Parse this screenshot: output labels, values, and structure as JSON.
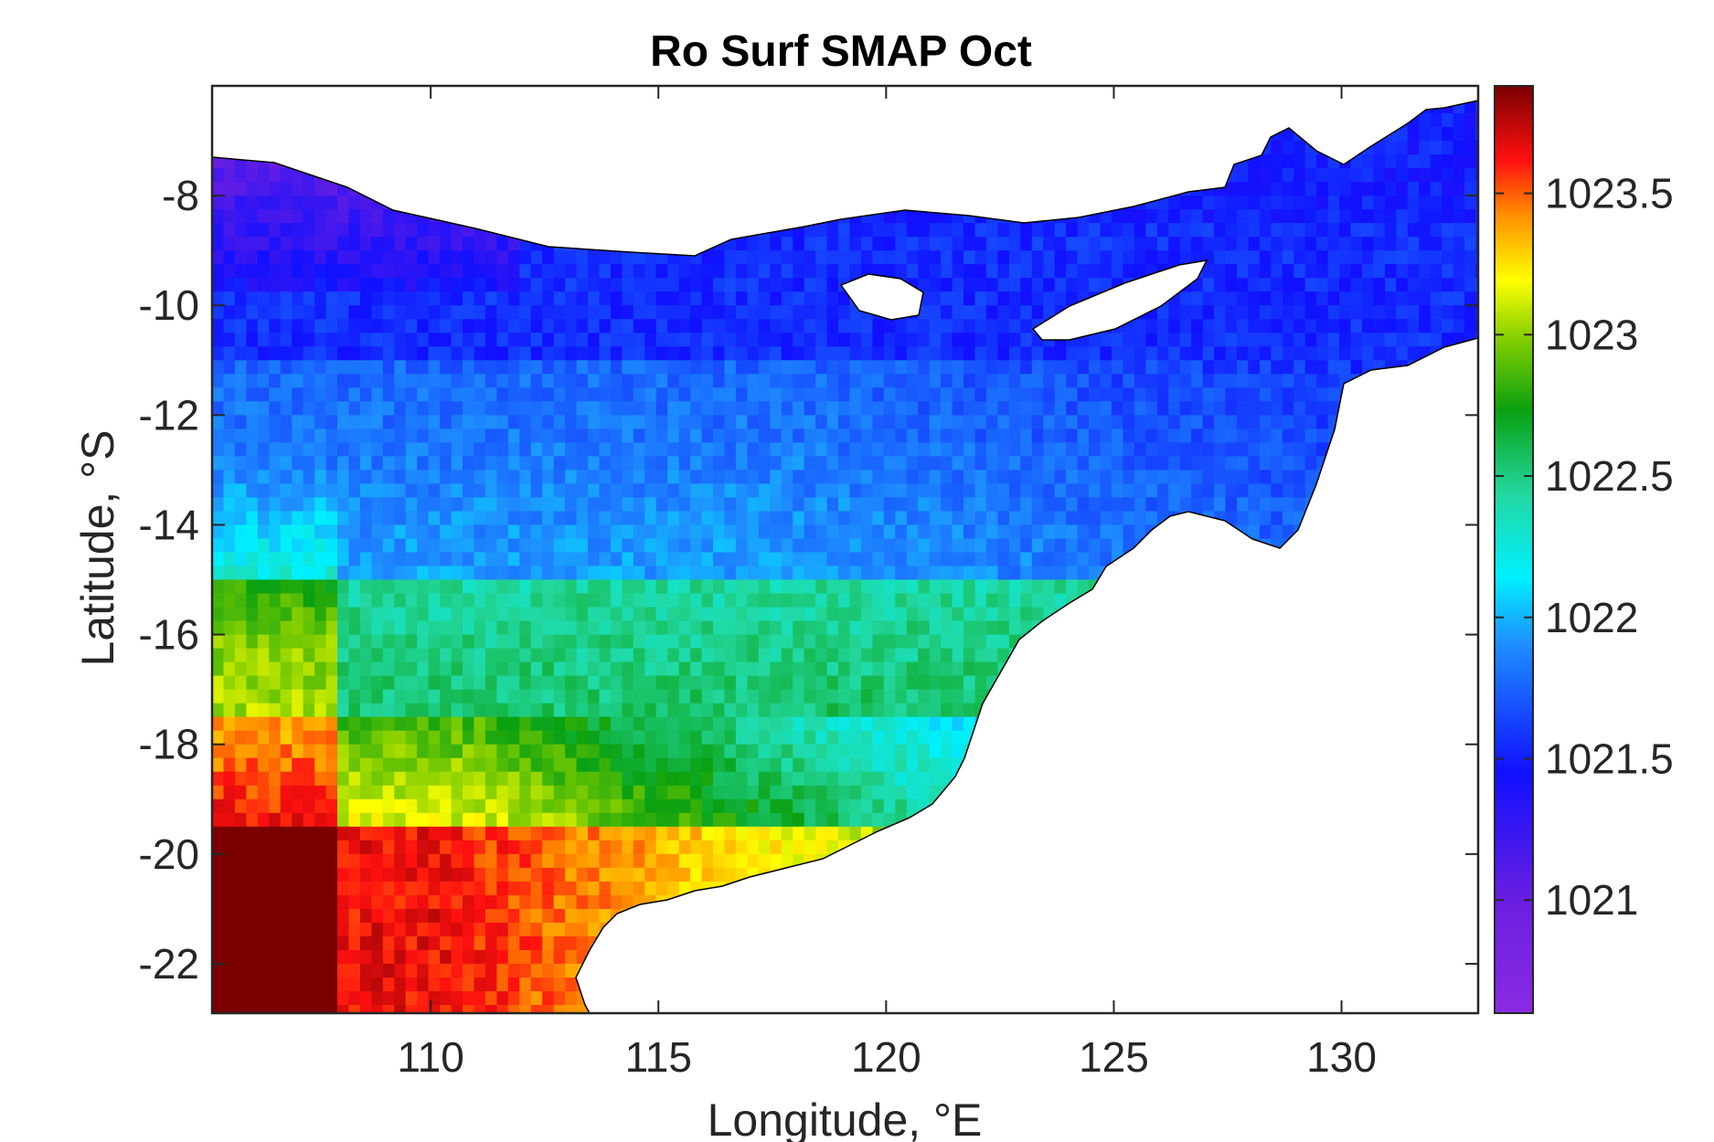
{
  "chart_data": {
    "type": "heatmap",
    "title": "Ro Surf SMAP Oct",
    "xlabel": "Longitude, °E",
    "ylabel": "Latitude, °S",
    "xlim": [
      105.2,
      133.0
    ],
    "ylim": [
      -22.9,
      -6.0
    ],
    "xticks": [
      110,
      115,
      120,
      125,
      130
    ],
    "xtick_labels": [
      "110",
      "115",
      "120",
      "125",
      "130"
    ],
    "yticks": [
      -8,
      -10,
      -12,
      -14,
      -16,
      -18,
      -20,
      -22
    ],
    "ytick_labels": [
      "-8",
      "-10",
      "-12",
      "-14",
      "-16",
      "-18",
      "-20",
      "-22"
    ],
    "colorbar": {
      "colormap": "jet-like (purple-blue-cyan-green-yellow-red-darkred)",
      "clim": [
        1020.6,
        1023.88
      ],
      "ticks": [
        1021,
        1021.5,
        1022,
        1022.5,
        1023,
        1023.5
      ],
      "tick_labels": [
        "1021",
        "1021.5",
        "1022",
        "1022.5",
        "1023",
        "1023.5"
      ]
    },
    "grid": false,
    "land_color": "#ffffff",
    "coastline_color": "#000000",
    "field_description_values": [
      {
        "region": "southwest corner (105-110E, 20-23S)",
        "value": 1023.7
      },
      {
        "region": "west shelf (110-113E, 18-22S)",
        "value": 1023.3
      },
      {
        "region": "band 15-18S",
        "value": 1022.5
      },
      {
        "region": "band 11-15S",
        "value": 1021.9
      },
      {
        "region": "north band 8-11S",
        "value": 1021.5
      },
      {
        "region": "northwest near Java (106-110E, 8-9S)",
        "value": 1021.1
      }
    ]
  }
}
